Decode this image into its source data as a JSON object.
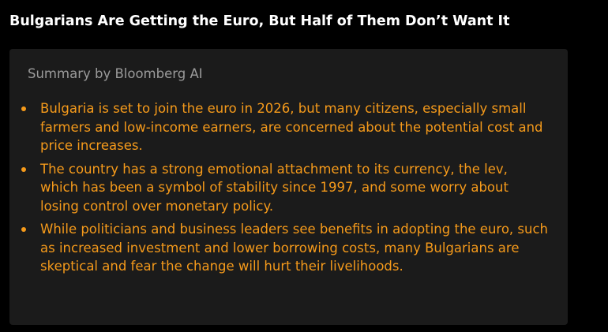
{
  "article": {
    "headline": "Bulgarians Are Getting the Euro, But Half of Them Don’t Want It"
  },
  "summary": {
    "label": "Summary by Bloomberg AI",
    "accent_color": "#f59a1b",
    "bullets": [
      "Bulgaria is set to join the euro in 2026, but many citizens, especially small farmers and low-income earners, are concerned about the potential cost and price increases.",
      "The country has a strong emotional attachment to its currency, the lev, which has been a symbol of stability since 1997, and some worry about losing control over monetary policy.",
      "While politicians and business leaders see benefits in adopting the euro, such as increased investment and lower borrowing costs, many Bulgarians are skeptical and fear the change will hurt their livelihoods."
    ]
  }
}
